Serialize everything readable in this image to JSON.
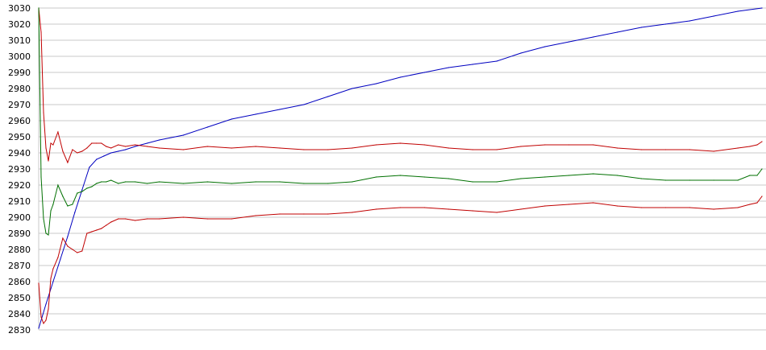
{
  "chart_data": {
    "type": "line",
    "title": "",
    "xlabel": "",
    "ylabel": "",
    "ylim": [
      2830,
      3030
    ],
    "yticks": [
      3030,
      3020,
      3010,
      3000,
      2990,
      2980,
      2970,
      2960,
      2950,
      2940,
      2930,
      2920,
      2910,
      2900,
      2890,
      2880,
      2870,
      2860,
      2850,
      2840,
      2830
    ],
    "grid": true,
    "legend": "none",
    "series": [
      {
        "color": "#0000c0",
        "x": [
          0,
          3,
          6,
          9,
          12,
          15,
          18,
          21,
          24,
          27,
          30,
          33,
          36,
          40,
          45,
          50,
          60,
          70,
          80,
          90,
          100,
          110,
          120,
          130,
          140,
          150,
          160,
          170,
          180,
          190,
          200,
          210,
          220,
          230,
          240,
          250,
          260,
          270,
          280,
          290,
          300
        ],
        "values": [
          2831,
          2846,
          2860,
          2874,
          2888,
          2903,
          2917,
          2931,
          2936,
          2938,
          2940,
          2941,
          2942,
          2944,
          2946,
          2948,
          2951,
          2956,
          2961,
          2964,
          2967,
          2970,
          2975,
          2980,
          2983,
          2987,
          2990,
          2993,
          2995,
          2997,
          3002,
          3006,
          3009,
          3012,
          3015,
          3018,
          3020,
          3022,
          3025,
          3028,
          3030
        ]
      },
      {
        "color": "#c00000",
        "x": [
          0,
          1,
          2,
          3,
          4,
          5,
          6,
          8,
          10,
          12,
          14,
          16,
          18,
          20,
          22,
          24,
          26,
          28,
          30,
          33,
          36,
          40,
          45,
          50,
          60,
          70,
          80,
          90,
          100,
          110,
          120,
          130,
          140,
          150,
          160,
          170,
          180,
          190,
          200,
          210,
          220,
          230,
          240,
          250,
          260,
          270,
          280,
          290,
          295,
          298,
          300
        ],
        "values": [
          3030,
          3015,
          2965,
          2943,
          2935,
          2946,
          2945,
          2953,
          2941,
          2934,
          2942,
          2940,
          2941,
          2943,
          2946,
          2946,
          2946,
          2944,
          2943,
          2945,
          2944,
          2945,
          2944,
          2943,
          2942,
          2944,
          2943,
          2944,
          2943,
          2942,
          2942,
          2943,
          2945,
          2946,
          2945,
          2943,
          2942,
          2942,
          2944,
          2945,
          2945,
          2945,
          2943,
          2942,
          2942,
          2942,
          2941,
          2943,
          2944,
          2945,
          2947
        ]
      },
      {
        "color": "#007000",
        "x": [
          0,
          1,
          2,
          3,
          4,
          5,
          6,
          8,
          10,
          12,
          14,
          16,
          18,
          20,
          22,
          24,
          26,
          28,
          30,
          33,
          36,
          40,
          45,
          50,
          60,
          70,
          80,
          90,
          100,
          110,
          120,
          130,
          140,
          150,
          160,
          170,
          180,
          190,
          200,
          210,
          220,
          230,
          240,
          250,
          260,
          270,
          280,
          290,
          295,
          298,
          300
        ],
        "values": [
          3030,
          2925,
          2899,
          2890,
          2889,
          2904,
          2908,
          2920,
          2913,
          2907,
          2908,
          2915,
          2916,
          2918,
          2919,
          2921,
          2922,
          2922,
          2923,
          2921,
          2922,
          2922,
          2921,
          2922,
          2921,
          2922,
          2921,
          2922,
          2922,
          2921,
          2921,
          2922,
          2925,
          2926,
          2925,
          2924,
          2922,
          2922,
          2924,
          2925,
          2926,
          2927,
          2926,
          2924,
          2923,
          2923,
          2923,
          2923,
          2926,
          2926,
          2930
        ]
      },
      {
        "color": "#c00000",
        "x": [
          0,
          1,
          2,
          3,
          4,
          5,
          6,
          8,
          10,
          12,
          14,
          16,
          18,
          20,
          22,
          24,
          26,
          28,
          30,
          33,
          36,
          40,
          45,
          50,
          60,
          70,
          80,
          90,
          100,
          110,
          120,
          130,
          140,
          150,
          160,
          170,
          180,
          190,
          200,
          210,
          220,
          230,
          240,
          250,
          260,
          270,
          280,
          290,
          295,
          298,
          300
        ],
        "values": [
          2859,
          2838,
          2834,
          2836,
          2843,
          2862,
          2868,
          2875,
          2887,
          2882,
          2880,
          2878,
          2879,
          2890,
          2891,
          2892,
          2893,
          2895,
          2897,
          2899,
          2899,
          2898,
          2899,
          2899,
          2900,
          2899,
          2899,
          2901,
          2902,
          2902,
          2902,
          2903,
          2905,
          2906,
          2906,
          2905,
          2904,
          2903,
          2905,
          2907,
          2908,
          2909,
          2907,
          2906,
          2906,
          2906,
          2905,
          2906,
          2908,
          2909,
          2913
        ]
      }
    ]
  }
}
